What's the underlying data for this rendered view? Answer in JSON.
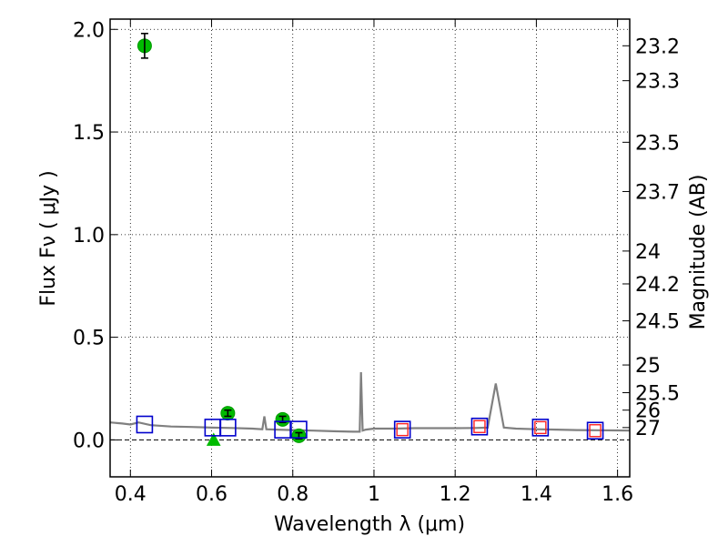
{
  "chart_data": {
    "type": "scatter",
    "xlabel": "Wavelength  λ (μm)",
    "ylabel": "Flux  Fν ( μJy )",
    "ylabel_right": "Magnitude (AB)",
    "xlim": [
      0.35,
      1.63
    ],
    "ylim": [
      -0.18,
      2.05
    ],
    "x_ticks": [
      {
        "value": 0.4,
        "label": "0.4"
      },
      {
        "value": 0.6,
        "label": "0.6"
      },
      {
        "value": 0.8,
        "label": "0.8"
      },
      {
        "value": 1.0,
        "label": "1"
      },
      {
        "value": 1.2,
        "label": "1.2"
      },
      {
        "value": 1.4,
        "label": "1.4"
      },
      {
        "value": 1.6,
        "label": "1.6"
      }
    ],
    "y_ticks": [
      {
        "value": 0.0,
        "label": "0.0"
      },
      {
        "value": 0.5,
        "label": "0.5"
      },
      {
        "value": 1.0,
        "label": "1.0"
      },
      {
        "value": 1.5,
        "label": "1.5"
      },
      {
        "value": 2.0,
        "label": "2.0"
      }
    ],
    "right_ticks": [
      {
        "flux": 1.92,
        "label": "23.2"
      },
      {
        "flux": 1.75,
        "label": "23.3"
      },
      {
        "flux": 1.45,
        "label": "23.5"
      },
      {
        "flux": 1.21,
        "label": "23.7"
      },
      {
        "flux": 0.92,
        "label": "24"
      },
      {
        "flux": 0.76,
        "label": "24.2"
      },
      {
        "flux": 0.58,
        "label": "24.5"
      },
      {
        "flux": 0.365,
        "label": "25"
      },
      {
        "flux": 0.23,
        "label": "25.5"
      },
      {
        "flux": 0.145,
        "label": "26"
      },
      {
        "flux": 0.06,
        "label": "27"
      }
    ],
    "grid": true,
    "colors": {
      "observed": "#00bb00",
      "model_optical": "#0000cc",
      "model_nir_outer": "#0000cc",
      "model_nir_inner": "#ff2222",
      "spectrum": "#808080",
      "zero_line": "#000000"
    },
    "series": [
      {
        "type": "scatter",
        "marker": "circle",
        "points": [
          {
            "x": 0.435,
            "y": 1.92,
            "err": 0.06
          },
          {
            "x": 0.64,
            "y": 0.13,
            "err": 0.015
          },
          {
            "x": 0.775,
            "y": 0.1,
            "err": 0.015
          },
          {
            "x": 0.815,
            "y": 0.02,
            "err": 0.015
          }
        ]
      },
      {
        "type": "scatter",
        "marker": "triangle",
        "points": [
          {
            "x": 0.605,
            "y": 0.0
          }
        ]
      },
      {
        "type": "scatter",
        "marker": "square",
        "points": [
          {
            "x": 0.435,
            "y": 0.075
          },
          {
            "x": 0.603,
            "y": 0.06
          },
          {
            "x": 0.64,
            "y": 0.06
          },
          {
            "x": 0.775,
            "y": 0.05
          },
          {
            "x": 0.815,
            "y": 0.05
          }
        ]
      },
      {
        "type": "scatter",
        "marker": "double-square",
        "points": [
          {
            "x": 1.07,
            "y": 0.05
          },
          {
            "x": 1.26,
            "y": 0.065
          },
          {
            "x": 1.41,
            "y": 0.06
          },
          {
            "x": 1.545,
            "y": 0.045
          }
        ]
      },
      {
        "type": "line",
        "points": [
          [
            0.35,
            0.085
          ],
          [
            0.38,
            0.08
          ],
          [
            0.4,
            0.075
          ],
          [
            0.42,
            0.085
          ],
          [
            0.45,
            0.072
          ],
          [
            0.5,
            0.065
          ],
          [
            0.55,
            0.063
          ],
          [
            0.6,
            0.06
          ],
          [
            0.65,
            0.058
          ],
          [
            0.7,
            0.055
          ],
          [
            0.725,
            0.052
          ],
          [
            0.73,
            0.115
          ],
          [
            0.735,
            0.052
          ],
          [
            0.76,
            0.05
          ],
          [
            0.8,
            0.048
          ],
          [
            0.85,
            0.045
          ],
          [
            0.9,
            0.042
          ],
          [
            0.95,
            0.04
          ],
          [
            0.965,
            0.04
          ],
          [
            0.968,
            0.33
          ],
          [
            0.972,
            0.045
          ],
          [
            0.98,
            0.05
          ],
          [
            1.0,
            0.055
          ],
          [
            1.05,
            0.055
          ],
          [
            1.1,
            0.057
          ],
          [
            1.15,
            0.057
          ],
          [
            1.2,
            0.057
          ],
          [
            1.25,
            0.058
          ],
          [
            1.28,
            0.06
          ],
          [
            1.3,
            0.275
          ],
          [
            1.32,
            0.06
          ],
          [
            1.35,
            0.055
          ],
          [
            1.4,
            0.052
          ],
          [
            1.45,
            0.05
          ],
          [
            1.5,
            0.048
          ],
          [
            1.55,
            0.047
          ],
          [
            1.6,
            0.046
          ],
          [
            1.63,
            0.045
          ]
        ]
      }
    ]
  }
}
